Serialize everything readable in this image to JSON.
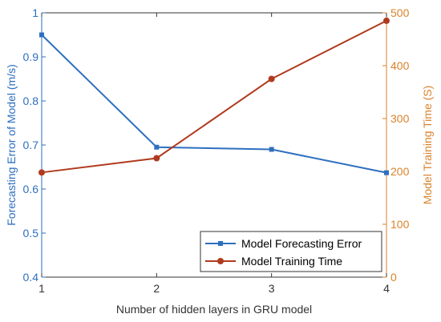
{
  "chart_data": {
    "type": "line",
    "xlabel": "Number of hidden layers in GRU model",
    "ylabel_left": "Forecasting Error of Model (m/s)",
    "ylabel_right": "Model Training Time (S)",
    "x": [
      1,
      2,
      3,
      4
    ],
    "xlim": [
      1,
      4
    ],
    "xticks": [
      "1",
      "2",
      "3",
      "4"
    ],
    "ylim_left": [
      0.4,
      1.0
    ],
    "yticks_left": [
      "0.4",
      "0.5",
      "0.6",
      "0.7",
      "0.8",
      "0.9",
      "1"
    ],
    "ylim_right": [
      0,
      500
    ],
    "yticks_right": [
      "0",
      "100",
      "200",
      "300",
      "400",
      "500"
    ],
    "grid": false,
    "legend_position": "bottom-right",
    "series": [
      {
        "name": "Model Forecasting Error",
        "axis": "left",
        "color": "#2E6FBF",
        "marker": "square",
        "values": [
          0.95,
          0.695,
          0.69,
          0.637
        ]
      },
      {
        "name": "Model Training Time",
        "axis": "right",
        "color": "#B03A1E",
        "marker": "circle",
        "values": [
          198,
          225,
          375,
          485
        ]
      }
    ],
    "colors": {
      "left_axis": "#2E6FBF",
      "right_axis": "#D9822B",
      "bottom_axis": "#333333"
    }
  }
}
